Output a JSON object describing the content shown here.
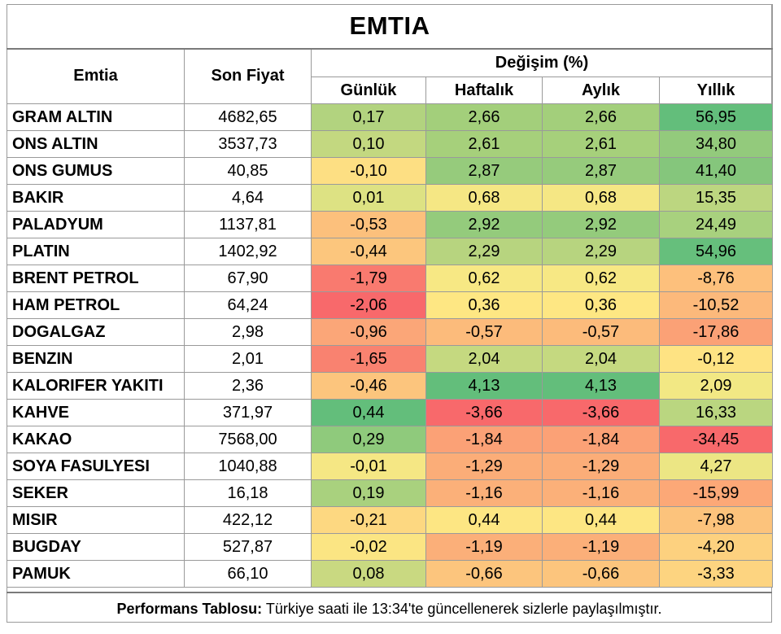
{
  "title": "EMTIA",
  "headers": {
    "name": "Emtia",
    "price": "Son Fiyat",
    "change_group": "Değişim (%)",
    "daily": "Günlük",
    "weekly": "Haftalık",
    "monthly": "Aylık",
    "yearly": "Yıllık"
  },
  "rows": [
    {
      "name": "GRAM ALTIN",
      "price": "4682,65",
      "daily": "0,17",
      "weekly": "2,66",
      "monthly": "2,66",
      "yearly": "56,95",
      "colors": [
        "#b2d37f",
        "#a3cf7b",
        "#a3cf7b",
        "#63be7b"
      ]
    },
    {
      "name": "ONS ALTIN",
      "price": "3537,73",
      "daily": "0,10",
      "weekly": "2,61",
      "monthly": "2,61",
      "yearly": "34,80",
      "colors": [
        "#c3d880",
        "#a6d07b",
        "#a6d07b",
        "#93ca7c"
      ]
    },
    {
      "name": "ONS GUMUS",
      "price": "40,85",
      "daily": "-0,10",
      "weekly": "2,87",
      "monthly": "2,87",
      "yearly": "41,40",
      "colors": [
        "#fddf83",
        "#96cb7c",
        "#96cb7c",
        "#85c67c"
      ]
    },
    {
      "name": "BAKIR",
      "price": "4,64",
      "daily": "0,01",
      "weekly": "0,68",
      "monthly": "0,68",
      "yearly": "15,35",
      "colors": [
        "#dde283",
        "#f5e784",
        "#f5e784",
        "#bcd680"
      ]
    },
    {
      "name": "PALADYUM",
      "price": "1137,81",
      "daily": "-0,53",
      "weekly": "2,92",
      "monthly": "2,92",
      "yearly": "24,49",
      "colors": [
        "#fcc07c",
        "#94cb7c",
        "#94cb7c",
        "#a8d17e"
      ]
    },
    {
      "name": "PLATIN",
      "price": "1402,92",
      "daily": "-0,44",
      "weekly": "2,29",
      "monthly": "2,29",
      "yearly": "54,96",
      "colors": [
        "#fcc67d",
        "#b7d47f",
        "#b7d47f",
        "#66bf7c"
      ]
    },
    {
      "name": "BRENT PETROL",
      "price": "67,90",
      "daily": "-1,79",
      "weekly": "0,62",
      "monthly": "0,62",
      "yearly": "-8,76",
      "colors": [
        "#f97a6f",
        "#f7e884",
        "#f7e884",
        "#fdc07c"
      ]
    },
    {
      "name": "HAM PETROL",
      "price": "64,24",
      "daily": "-2,06",
      "weekly": "0,36",
      "monthly": "0,36",
      "yearly": "-10,52",
      "colors": [
        "#f8696b",
        "#fee783",
        "#fee783",
        "#fcb97b"
      ]
    },
    {
      "name": "DOGALGAZ",
      "price": "2,98",
      "daily": "-0,96",
      "weekly": "-0,57",
      "monthly": "-0,57",
      "yearly": "-17,86",
      "colors": [
        "#fba678",
        "#fcbb7b",
        "#fcbb7b",
        "#fba176"
      ]
    },
    {
      "name": "BENZIN",
      "price": "2,01",
      "daily": "-1,65",
      "weekly": "2,04",
      "monthly": "2,04",
      "yearly": "-0,12",
      "colors": [
        "#f98270",
        "#c5d980",
        "#c5d980",
        "#fee383"
      ]
    },
    {
      "name": "KALORIFER YAKITI",
      "price": "2,36",
      "daily": "-0,46",
      "weekly": "4,13",
      "monthly": "4,13",
      "yearly": "2,09",
      "colors": [
        "#fcc57d",
        "#63be7b",
        "#63be7b",
        "#f2e884"
      ]
    },
    {
      "name": "KAHVE",
      "price": "371,97",
      "daily": "0,44",
      "weekly": "-3,66",
      "monthly": "-3,66",
      "yearly": "16,33",
      "colors": [
        "#63be7b",
        "#f8696b",
        "#f8696b",
        "#bad680"
      ]
    },
    {
      "name": "KAKAO",
      "price": "7568,00",
      "daily": "0,29",
      "weekly": "-1,84",
      "monthly": "-1,84",
      "yearly": "-34,45",
      "colors": [
        "#8fca7c",
        "#fba176",
        "#fba176",
        "#f8696b"
      ]
    },
    {
      "name": "SOYA FASULYESI",
      "price": "1040,88",
      "daily": "-0,01",
      "weekly": "-1,29",
      "monthly": "-1,29",
      "yearly": "4,27",
      "colors": [
        "#f5e784",
        "#fbad78",
        "#fbad78",
        "#ece684"
      ]
    },
    {
      "name": "SEKER",
      "price": "16,18",
      "daily": "0,19",
      "weekly": "-1,16",
      "monthly": "-1,16",
      "yearly": "-15,99",
      "colors": [
        "#a9d17e",
        "#fbb079",
        "#fbb079",
        "#fca877"
      ]
    },
    {
      "name": "MISIR",
      "price": "422,12",
      "daily": "-0,21",
      "weekly": "0,44",
      "monthly": "0,44",
      "yearly": "-7,98",
      "colors": [
        "#fdd881",
        "#fde683",
        "#fde683",
        "#fcc37c"
      ]
    },
    {
      "name": "BUGDAY",
      "price": "527,87",
      "daily": "-0,02",
      "weekly": "-1,19",
      "monthly": "-1,19",
      "yearly": "-4,20",
      "colors": [
        "#fbe583",
        "#fbaf79",
        "#fbaf79",
        "#fdd17f"
      ]
    },
    {
      "name": "PAMUK",
      "price": "66,10",
      "daily": "0,08",
      "weekly": "-0,66",
      "monthly": "-0,66",
      "yearly": "-3,33",
      "colors": [
        "#c9d981",
        "#fcc57d",
        "#fcc57d",
        "#fdd480"
      ]
    }
  ],
  "footer": {
    "label": "Performans Tablosu:",
    "text": " Türkiye saati ile 13:34'te güncellenerek sizlerle paylaşılmıştır."
  }
}
